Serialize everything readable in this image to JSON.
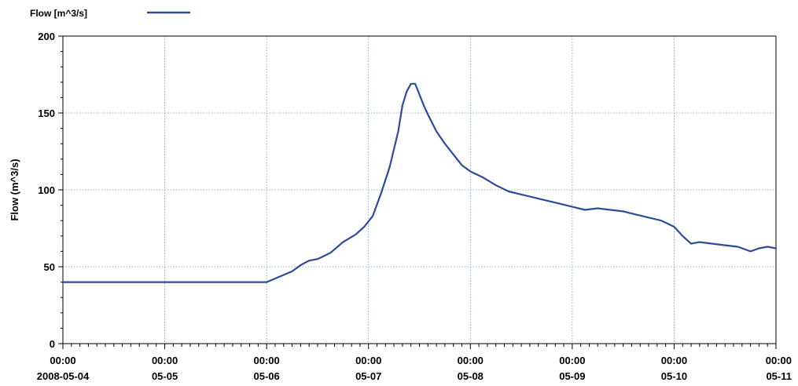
{
  "chart_data": {
    "type": "line",
    "title": "",
    "xlabel": "",
    "ylabel": "Flow (m^3/s)",
    "ylim": [
      0,
      200
    ],
    "xlim": [
      "2008-05-04 00:00",
      "2008-05-11 00:00"
    ],
    "grid": true,
    "legend_position": "top-left",
    "y_ticks": [
      0,
      50,
      100,
      150,
      200
    ],
    "x_ticks": [
      {
        "time": "00:00",
        "date": "2008-05-04"
      },
      {
        "time": "00:00",
        "date": "05-05"
      },
      {
        "time": "00:00",
        "date": "05-06"
      },
      {
        "time": "00:00",
        "date": "05-07"
      },
      {
        "time": "00:00",
        "date": "05-08"
      },
      {
        "time": "00:00",
        "date": "05-09"
      },
      {
        "time": "00:00",
        "date": "05-10"
      },
      {
        "time": "00:00",
        "date": "05-11"
      }
    ],
    "series": [
      {
        "name": "Flow [m^3/s]",
        "color": "#2e4a9a",
        "x": [
          "2008-05-04 00:00",
          "2008-05-05 00:00",
          "2008-05-06 00:00",
          "2008-05-06 06:00",
          "2008-05-06 08:00",
          "2008-05-06 10:00",
          "2008-05-06 12:00",
          "2008-05-06 15:00",
          "2008-05-06 18:00",
          "2008-05-06 21:00",
          "2008-05-06 23:00",
          "2008-05-07 01:00",
          "2008-05-07 03:00",
          "2008-05-07 05:00",
          "2008-05-07 07:00",
          "2008-05-07 08:00",
          "2008-05-07 09:00",
          "2008-05-07 10:00",
          "2008-05-07 11:00",
          "2008-05-07 12:00",
          "2008-05-07 13:00",
          "2008-05-07 14:00",
          "2008-05-07 16:00",
          "2008-05-07 18:00",
          "2008-05-07 20:00",
          "2008-05-07 22:00",
          "2008-05-08 00:00",
          "2008-05-08 03:00",
          "2008-05-08 06:00",
          "2008-05-08 09:00",
          "2008-05-08 12:00",
          "2008-05-08 15:00",
          "2008-05-08 18:00",
          "2008-05-08 21:00",
          "2008-05-09 00:00",
          "2008-05-09 03:00",
          "2008-05-09 06:00",
          "2008-05-09 09:00",
          "2008-05-09 12:00",
          "2008-05-09 15:00",
          "2008-05-09 18:00",
          "2008-05-09 21:00",
          "2008-05-10 00:00",
          "2008-05-10 02:00",
          "2008-05-10 04:00",
          "2008-05-10 06:00",
          "2008-05-10 09:00",
          "2008-05-10 12:00",
          "2008-05-10 15:00",
          "2008-05-10 18:00",
          "2008-05-10 20:00",
          "2008-05-10 22:00",
          "2008-05-11 00:00"
        ],
        "y": [
          40,
          40,
          40,
          47,
          51,
          54,
          55,
          59,
          66,
          71,
          76,
          83,
          98,
          115,
          138,
          155,
          164,
          169,
          169,
          162,
          155,
          149,
          138,
          130,
          123,
          116,
          112,
          108,
          103,
          99,
          97,
          95,
          93,
          91,
          89,
          87,
          88,
          87,
          86,
          84,
          82,
          80,
          76,
          70,
          65,
          66,
          65,
          64,
          63,
          60,
          62,
          63,
          62
        ]
      }
    ]
  }
}
